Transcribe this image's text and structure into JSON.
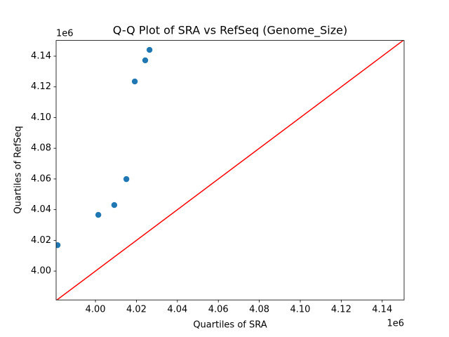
{
  "chart_data": {
    "type": "scatter",
    "title": "Q-Q Plot of SRA vs RefSeq (Genome_Size)",
    "x_label": "Quartiles of SRA",
    "y_label": "Quartiles of RefSeq",
    "x_offset_label": "1e6",
    "y_offset_label": "1e6",
    "xlim": [
      3980800,
      4150700
    ],
    "ylim": [
      3981200,
      4150250
    ],
    "xticks": [
      {
        "value": 4000000,
        "label": "4.00"
      },
      {
        "value": 4020000,
        "label": "4.02"
      },
      {
        "value": 4040000,
        "label": "4.04"
      },
      {
        "value": 4060000,
        "label": "4.06"
      },
      {
        "value": 4080000,
        "label": "4.08"
      },
      {
        "value": 4100000,
        "label": "4.10"
      },
      {
        "value": 4120000,
        "label": "4.12"
      },
      {
        "value": 4140000,
        "label": "4.14"
      }
    ],
    "yticks": [
      {
        "value": 4000000,
        "label": "4.00"
      },
      {
        "value": 4020000,
        "label": "4.02"
      },
      {
        "value": 4040000,
        "label": "4.04"
      },
      {
        "value": 4060000,
        "label": "4.06"
      },
      {
        "value": 4080000,
        "label": "4.08"
      },
      {
        "value": 4100000,
        "label": "4.10"
      },
      {
        "value": 4120000,
        "label": "4.12"
      },
      {
        "value": 4140000,
        "label": "4.14"
      }
    ],
    "series": [
      {
        "kind": "scatter",
        "color": "#1f77b4",
        "x": [
          3981500,
          4001400,
          4009200,
          4015100,
          4019200,
          4024300,
          4026400
        ],
        "values": [
          4016900,
          4036600,
          4043000,
          4059900,
          4123500,
          4137300,
          4144100
        ]
      },
      {
        "kind": "line",
        "color": "#ff0000",
        "x": [
          3980800,
          4150700
        ],
        "values": [
          3980800,
          4150700
        ]
      }
    ]
  }
}
